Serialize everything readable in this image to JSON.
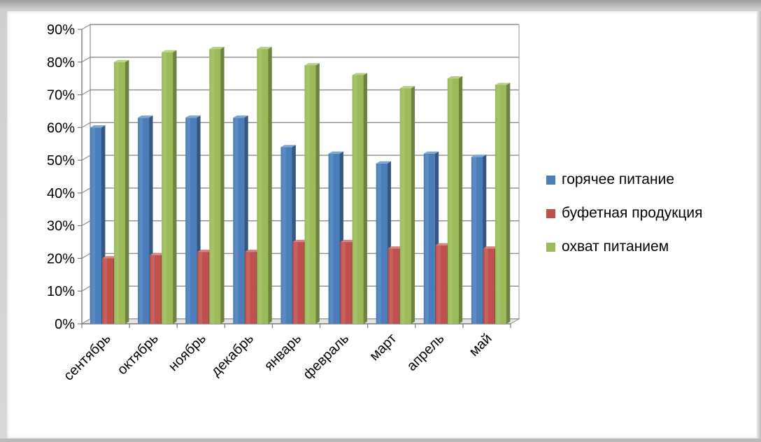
{
  "chart_data": {
    "type": "bar",
    "title": "",
    "xlabel": "",
    "ylabel": "",
    "ylim": [
      0,
      90
    ],
    "yticks": [
      "0%",
      "10%",
      "20%",
      "30%",
      "40%",
      "50%",
      "60%",
      "70%",
      "80%",
      "90%"
    ],
    "categories": [
      "сентябрь",
      "октябрь",
      "ноябрь",
      "декабрь",
      "январь",
      "февраль",
      "март",
      "апрель",
      "май"
    ],
    "series": [
      {
        "name": "горячее питание",
        "color": "#4a7ebb",
        "values": [
          60,
          63,
          63,
          63,
          54,
          52,
          49,
          52,
          51
        ]
      },
      {
        "name": "буфетная продукция",
        "color": "#c0504d",
        "values": [
          20,
          21,
          22,
          22,
          25,
          25,
          23,
          24,
          23
        ]
      },
      {
        "name": "охват питанием",
        "color": "#9bbb59",
        "values": [
          80,
          83,
          84,
          84,
          79,
          76,
          72,
          75,
          73
        ]
      }
    ],
    "grid": true,
    "legend_position": "right",
    "style": "3d-clustered-column"
  }
}
